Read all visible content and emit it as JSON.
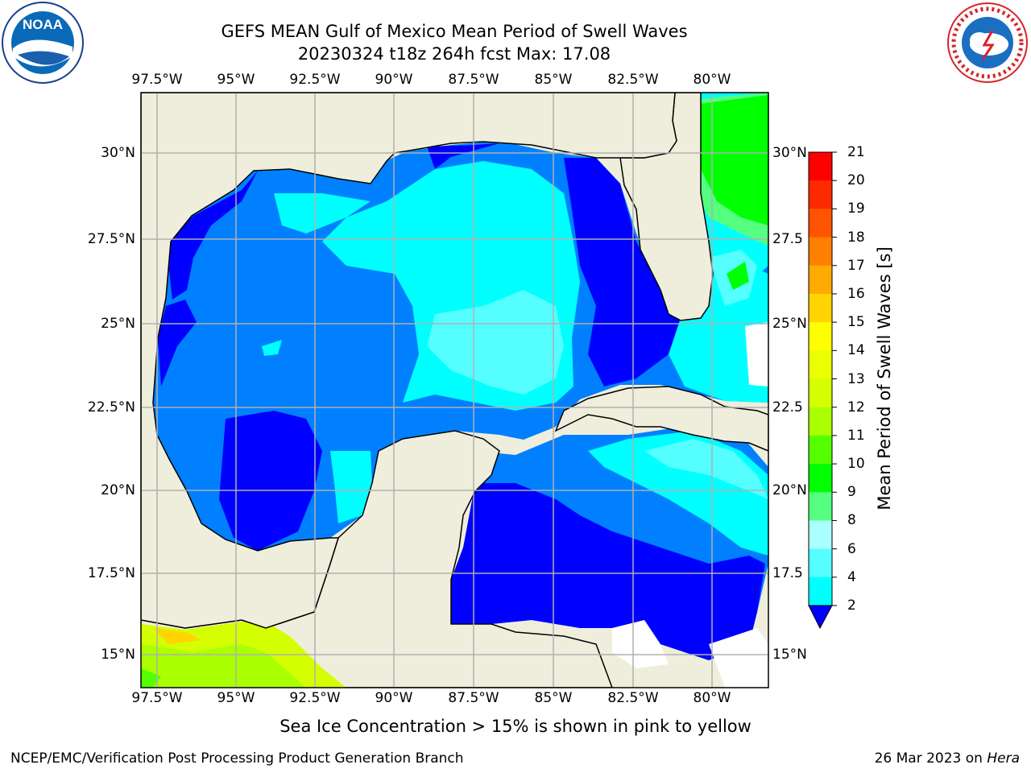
{
  "header": {
    "title_line1": "GEFS MEAN Gulf of Mexico Mean Period of Swell Waves",
    "title_line2": "20230324 t18z 264h fcst   Max: 17.08"
  },
  "logos": {
    "left": "NOAA",
    "left_ring_text": "NATIONAL OCEANIC AND ATMOSPHERIC ADMINISTRATION · U.S. DEPARTMENT OF COMMERCE",
    "right_ring_text": "NATIONAL WEATHER SERVICE"
  },
  "map": {
    "lon_ticks_top": [
      "97.5°W",
      "95°W",
      "92.5°W",
      "90°W",
      "87.5°W",
      "85°W",
      "82.5°W",
      "80°W"
    ],
    "lon_ticks_bottom": [
      "97.5°W",
      "95°W",
      "92.5°W",
      "90°W",
      "87.5°W",
      "85°W",
      "82.5°W",
      "80°W"
    ],
    "lat_ticks_left": [
      "30°N",
      "27.5°N",
      "25°N",
      "22.5°N",
      "20°N",
      "17.5°N",
      "15°N"
    ],
    "lat_ticks_right": [
      "30°N",
      "27.5",
      "25°N",
      "22.5",
      "20°N",
      "17.5",
      "15°N"
    ],
    "colors": {
      "land": "#efeedc",
      "gridline": "#b0b0b0"
    }
  },
  "colorbar": {
    "label": "Mean Period of Swell Waves [s]",
    "ticks": [
      "21",
      "20",
      "19",
      "18",
      "17",
      "16",
      "15",
      "14",
      "13",
      "12",
      "11",
      "10",
      "9",
      "8",
      "6",
      "4",
      "2"
    ],
    "colors_top_to_bottom": [
      "#ff0000",
      "#ff2a00",
      "#ff5500",
      "#ff7f00",
      "#ffaa00",
      "#ffd400",
      "#ffff00",
      "#eaff00",
      "#d4ff00",
      "#aaff00",
      "#55ff00",
      "#00ff00",
      "#55ff80",
      "#aaffff",
      "#55ffff",
      "#00ffff",
      "#0080ff",
      "#0000ff"
    ]
  },
  "note": "Sea Ice Concentration > 15% is shown in pink to yellow",
  "footer": {
    "left": "NCEP/EMC/Verification Post Processing Product Generation Branch",
    "date": "26 Mar 2023 on ",
    "machine": "Hera"
  }
}
